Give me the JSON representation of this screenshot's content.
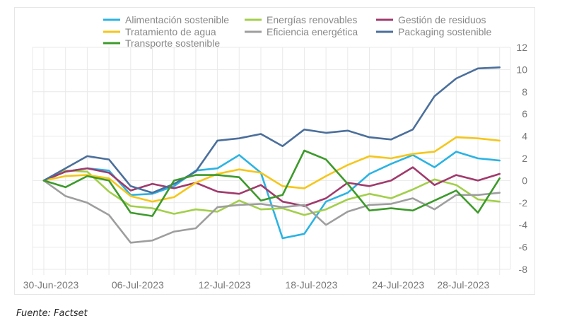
{
  "source_note": "Fuente: Factset",
  "chart_data": {
    "type": "line",
    "title": "",
    "xlabel": "",
    "ylabel": "",
    "ylim": [
      -8,
      12
    ],
    "yticks": [
      12,
      10,
      8,
      6,
      4,
      2,
      0,
      -2,
      -4,
      -6,
      -8
    ],
    "y_axis_side": "right",
    "grid": true,
    "legend_position": "top",
    "x_tick_labels": [
      "30-Jun-2023",
      "06-Jul-2023",
      "12-Jul-2023",
      "18-Jul-2023",
      "24-Jul-2023",
      "28-Jul-2023"
    ],
    "x_tick_indices": [
      0,
      4,
      8,
      12,
      16,
      19
    ],
    "n_points": 22,
    "series": [
      {
        "name": "Alimentación sostenible",
        "color": "#2bb3e3",
        "values": [
          0,
          0.8,
          1.1,
          0.9,
          -1.3,
          -1.2,
          -0.5,
          0.9,
          1.1,
          2.3,
          0.7,
          -5.2,
          -4.8,
          -1.9,
          -1.1,
          0.6,
          1.5,
          2.3,
          1.2,
          2.6,
          2.0,
          1.8
        ]
      },
      {
        "name": "Energías renovables",
        "color": "#a2cf4a",
        "values": [
          0,
          0.9,
          0.8,
          -1.0,
          -2.3,
          -2.5,
          -3.0,
          -2.6,
          -2.8,
          -1.8,
          -2.6,
          -2.5,
          -3.1,
          -2.6,
          -1.7,
          -1.2,
          -1.6,
          -0.8,
          0.1,
          -0.4,
          -1.7,
          -1.9
        ]
      },
      {
        "name": "Gestión de residuos",
        "color": "#a03a6c",
        "values": [
          0,
          0.8,
          1.1,
          0.7,
          -0.9,
          -0.3,
          -0.7,
          -0.2,
          -1.0,
          -1.2,
          -0.4,
          -1.9,
          -2.3,
          -1.6,
          -0.2,
          -0.5,
          0.0,
          1.2,
          -0.4,
          0.5,
          0.0,
          0.6
        ]
      },
      {
        "name": "Tratamiento de agua",
        "color": "#f5c61a",
        "values": [
          0,
          0.4,
          0.5,
          0.2,
          -1.4,
          -1.9,
          -1.5,
          -0.2,
          0.6,
          1.0,
          0.7,
          -0.5,
          -0.7,
          0.4,
          1.4,
          2.2,
          2.0,
          2.4,
          2.6,
          3.9,
          3.8,
          3.6
        ]
      },
      {
        "name": "Eficiencia energética",
        "color": "#9e9e9e",
        "values": [
          0,
          -1.4,
          -2.0,
          -3.1,
          -5.6,
          -5.4,
          -4.6,
          -4.3,
          -2.4,
          -2.2,
          -2.1,
          -2.4,
          -2.2,
          -4.0,
          -2.8,
          -2.2,
          -2.1,
          -1.6,
          -2.6,
          -1.3,
          -1.3,
          -1.1
        ]
      },
      {
        "name": "Packaging sostenible",
        "color": "#4b6f9b",
        "values": [
          0,
          1.1,
          2.2,
          1.9,
          -0.5,
          -1.1,
          -0.3,
          0.8,
          3.6,
          3.8,
          4.2,
          3.1,
          4.6,
          4.3,
          4.5,
          3.9,
          3.7,
          4.6,
          7.6,
          9.2,
          10.1,
          10.2
        ]
      },
      {
        "name": "Transporte sostenible",
        "color": "#3d9a2b",
        "values": [
          0,
          -0.6,
          0.4,
          0.0,
          -2.9,
          -3.2,
          0.0,
          0.5,
          0.5,
          0.3,
          -1.8,
          -1.3,
          2.7,
          1.9,
          -0.3,
          -2.7,
          -2.5,
          -2.7,
          -1.8,
          -0.9,
          -2.9,
          0.2
        ]
      }
    ]
  }
}
